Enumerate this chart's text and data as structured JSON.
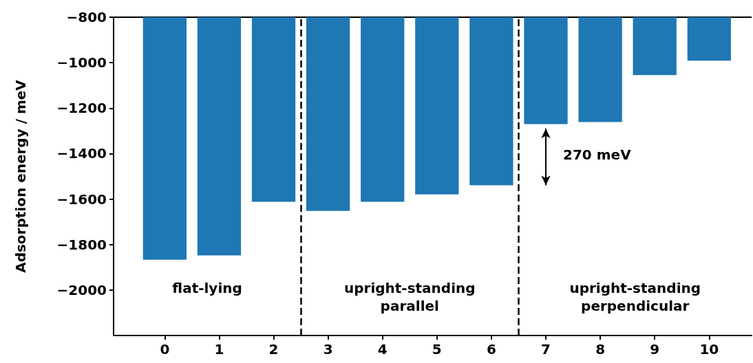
{
  "chart_data": {
    "type": "bar",
    "ylabel": "Adsorption energy / meV",
    "x": [
      0,
      1,
      2,
      3,
      4,
      5,
      6,
      7,
      8,
      9,
      10
    ],
    "values": [
      -1867,
      -1848,
      -1612,
      -1652,
      -1612,
      -1579,
      -1539,
      -1270,
      -1261,
      -1055,
      -991
    ],
    "color": "#1f77b4",
    "xlim": [
      -0.94,
      10.78
    ],
    "xticks": [
      0,
      1,
      2,
      3,
      4,
      5,
      6,
      7,
      8,
      9,
      10
    ],
    "ylim": [
      -2200,
      -800
    ],
    "yticks": [
      -2000,
      -1800,
      -1600,
      -1400,
      -1200,
      -1000,
      -800
    ],
    "ref_lines": [
      {
        "axis": "x",
        "value": 2.5,
        "color": "#000000",
        "line_style": "dashed"
      },
      {
        "axis": "x",
        "value": 6.5,
        "color": "#000000",
        "line_style": "dashed"
      }
    ],
    "annotations": [
      "flat-lying",
      "upright-standing\nparallel",
      "upright-standing\nperpendicular",
      "270 meV"
    ],
    "grid": false
  }
}
